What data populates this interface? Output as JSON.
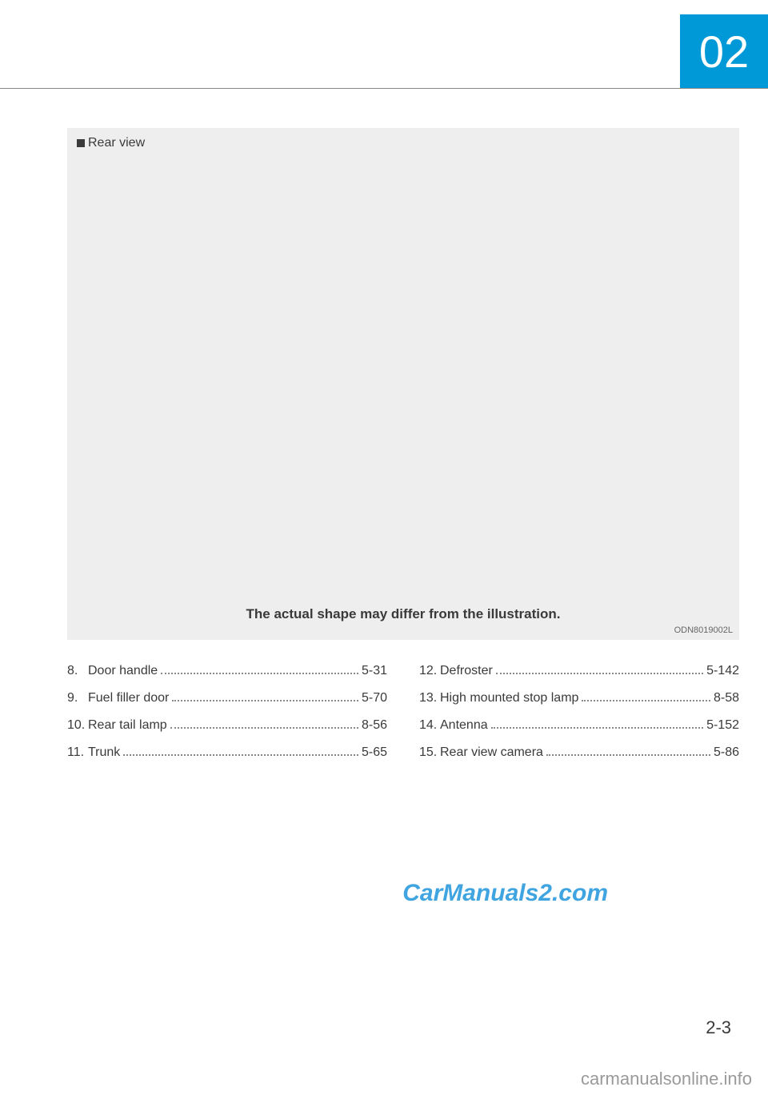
{
  "chapter": {
    "number": "02"
  },
  "figure": {
    "label_prefix": "Rear view",
    "note": "The actual shape may differ from the illustration.",
    "code": "ODN8019002L",
    "background_color": "#eeeeee"
  },
  "toc": {
    "left": [
      {
        "num": "8.",
        "label": "Door handle",
        "page": "5-31"
      },
      {
        "num": "9.",
        "label": "Fuel filler door",
        "page": "5-70"
      },
      {
        "num": "10.",
        "label": "Rear tail lamp",
        "page": "8-56"
      },
      {
        "num": "11.",
        "label": "Trunk",
        "page": "5-65"
      }
    ],
    "right": [
      {
        "num": "12.",
        "label": "Defroster",
        "page": "5-142"
      },
      {
        "num": "13.",
        "label": "High mounted stop lamp",
        "page": "8-58"
      },
      {
        "num": "14.",
        "label": "Antenna",
        "page": "5-152"
      },
      {
        "num": "15.",
        "label": "Rear view camera",
        "page": "5-86"
      }
    ]
  },
  "watermarks": {
    "brand": "CarManuals2.com",
    "footer": "carmanualsonline.info"
  },
  "page_number": "2-3"
}
